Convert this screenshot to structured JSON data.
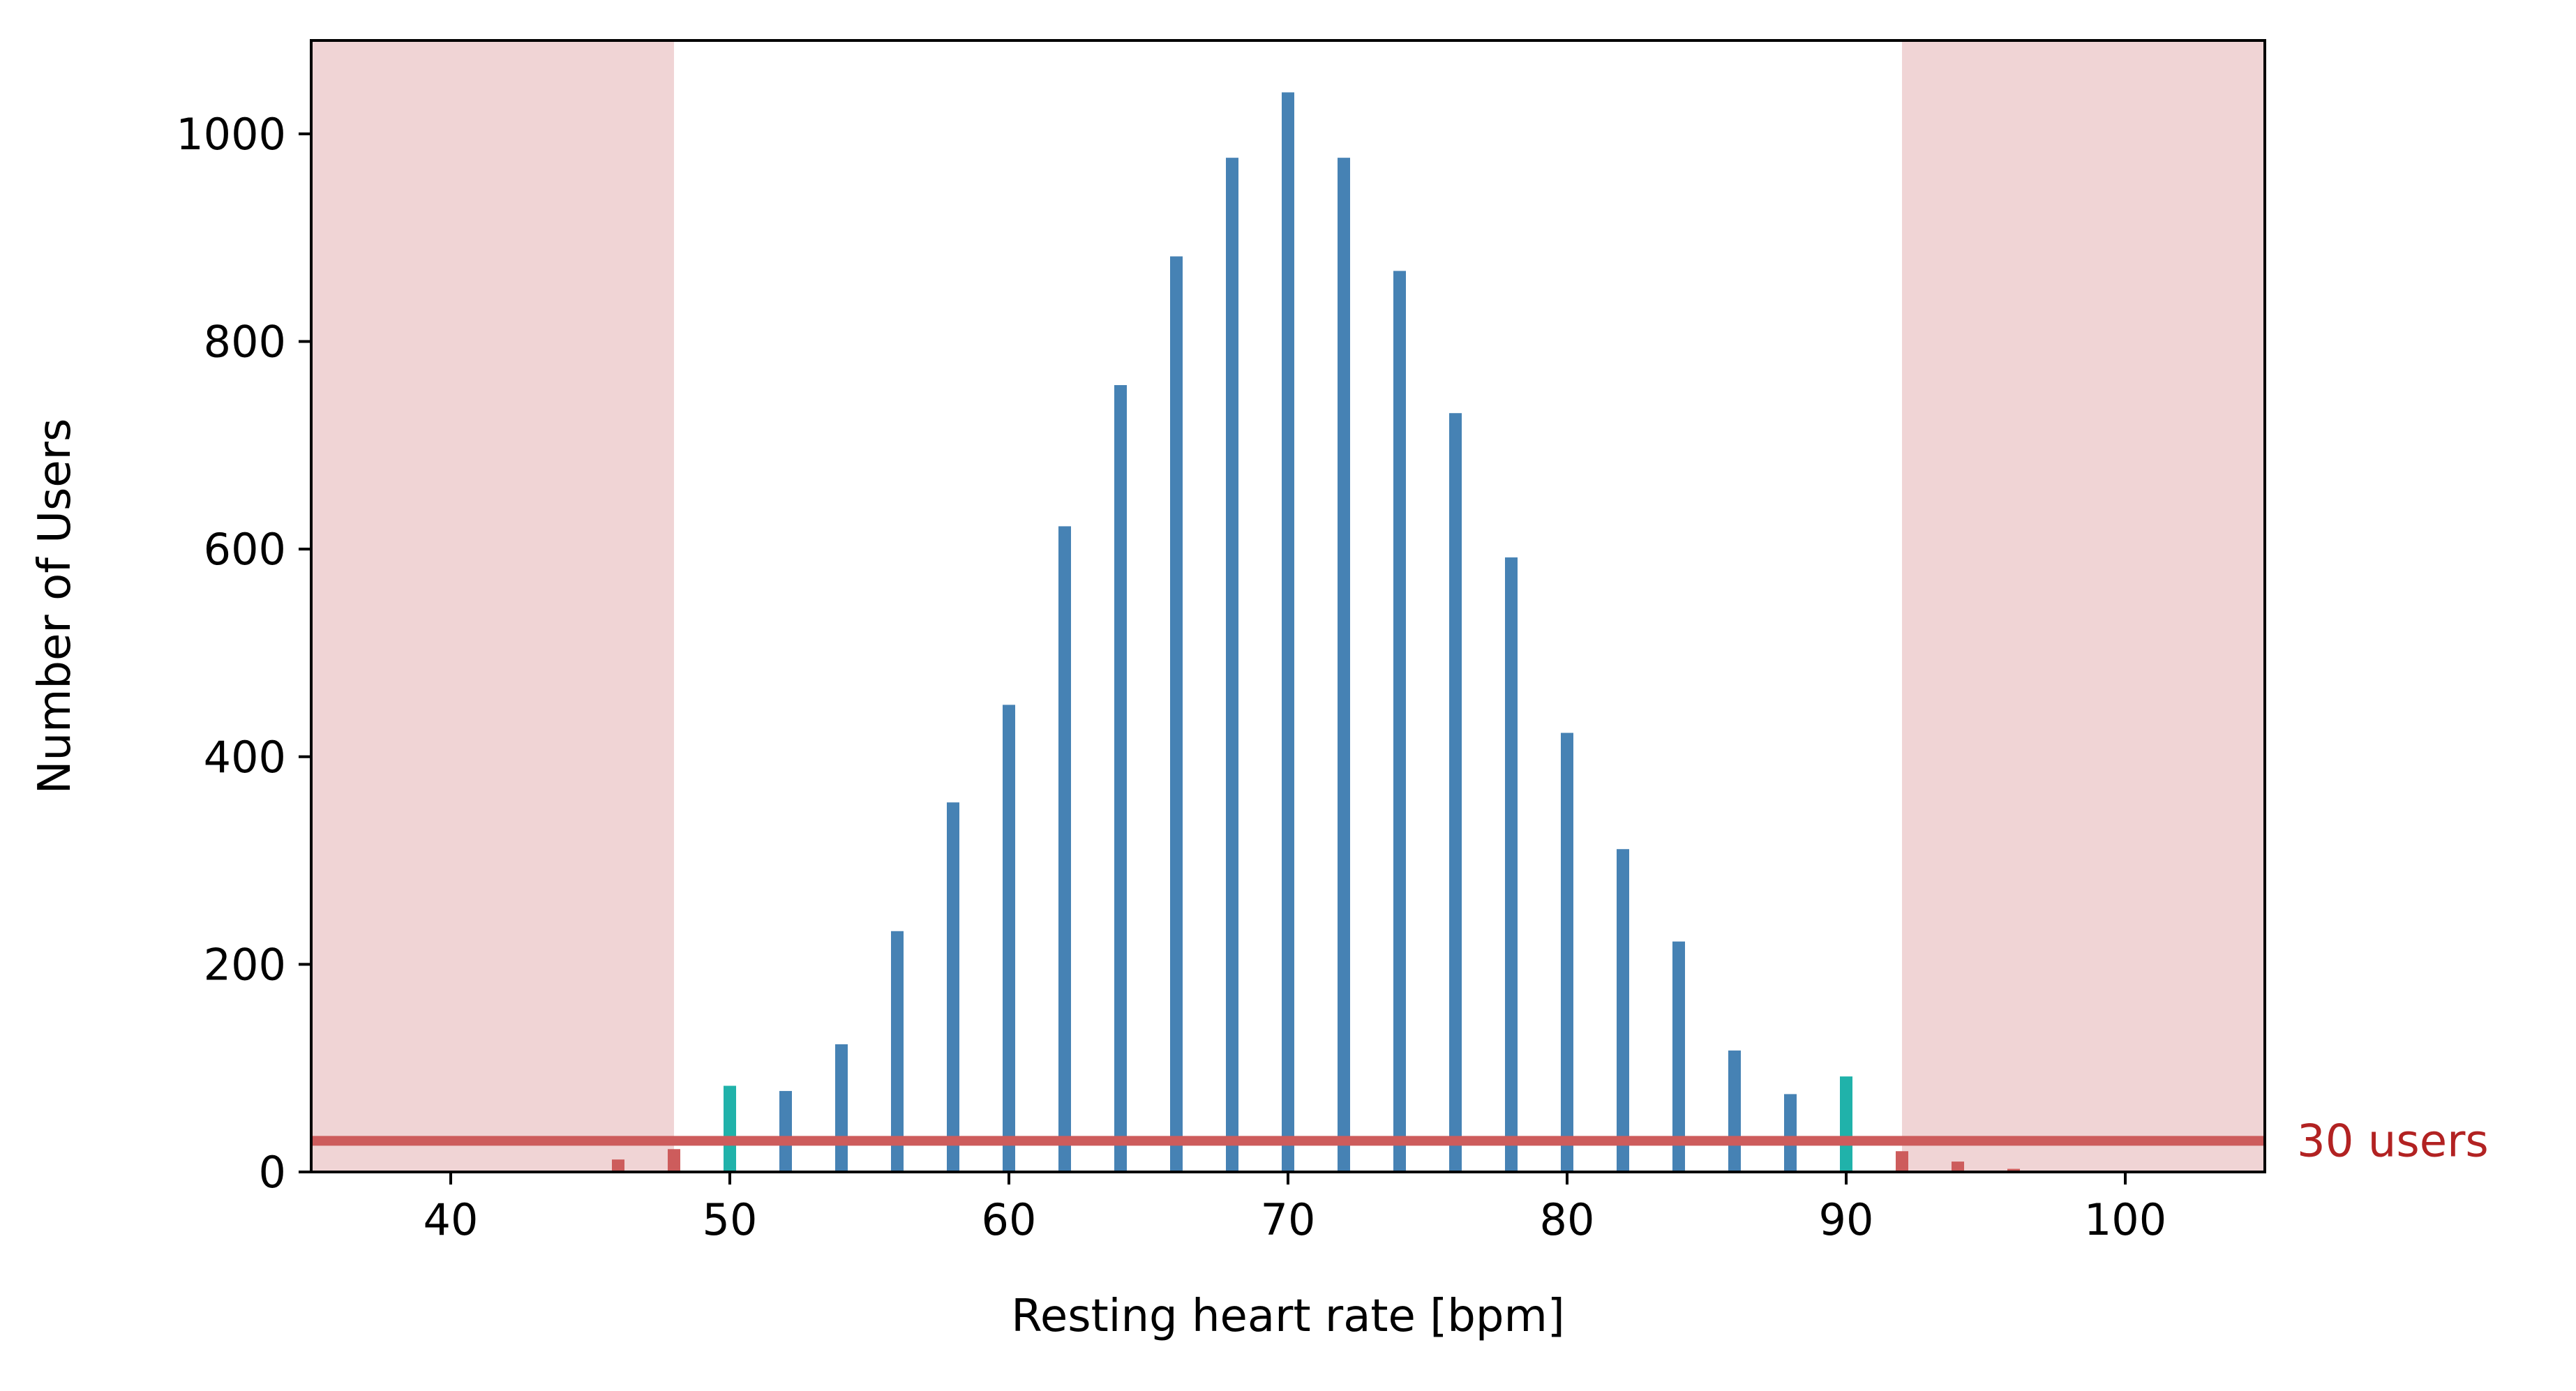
{
  "chart_data": {
    "type": "bar",
    "title": "",
    "xlabel": "Resting heart rate [bpm]",
    "ylabel": "Number of Users",
    "xlim": [
      35,
      105
    ],
    "ylim": [
      0,
      1090
    ],
    "xticks": [
      40,
      50,
      60,
      70,
      80,
      90,
      100
    ],
    "yticks": [
      0,
      200,
      400,
      600,
      800,
      1000
    ],
    "grid": false,
    "threshold": {
      "value": 30,
      "label": "30 users",
      "color": "#cd5c5c",
      "label_color": "#b22222"
    },
    "shaded_regions": [
      {
        "from": 35,
        "to": 48,
        "color": "#f0d4d5"
      },
      {
        "from": 92,
        "to": 105,
        "color": "#f0d4d5"
      }
    ],
    "colors": {
      "normal": "#4682b4",
      "flagged_low_count": "#cd5c5c",
      "borderline": "#20b2aa"
    },
    "bars": [
      {
        "x": 46,
        "value": 12,
        "status": "flagged_low_count"
      },
      {
        "x": 48,
        "value": 22,
        "status": "flagged_low_count"
      },
      {
        "x": 50,
        "value": 83,
        "status": "borderline"
      },
      {
        "x": 52,
        "value": 78,
        "status": "normal"
      },
      {
        "x": 54,
        "value": 123,
        "status": "normal"
      },
      {
        "x": 56,
        "value": 232,
        "status": "normal"
      },
      {
        "x": 58,
        "value": 356,
        "status": "normal"
      },
      {
        "x": 60,
        "value": 450,
        "status": "normal"
      },
      {
        "x": 62,
        "value": 622,
        "status": "normal"
      },
      {
        "x": 64,
        "value": 758,
        "status": "normal"
      },
      {
        "x": 66,
        "value": 882,
        "status": "normal"
      },
      {
        "x": 68,
        "value": 977,
        "status": "normal"
      },
      {
        "x": 70,
        "value": 1040,
        "status": "normal"
      },
      {
        "x": 72,
        "value": 977,
        "status": "normal"
      },
      {
        "x": 74,
        "value": 868,
        "status": "normal"
      },
      {
        "x": 76,
        "value": 731,
        "status": "normal"
      },
      {
        "x": 78,
        "value": 592,
        "status": "normal"
      },
      {
        "x": 80,
        "value": 423,
        "status": "normal"
      },
      {
        "x": 82,
        "value": 311,
        "status": "normal"
      },
      {
        "x": 84,
        "value": 222,
        "status": "normal"
      },
      {
        "x": 86,
        "value": 117,
        "status": "normal"
      },
      {
        "x": 88,
        "value": 75,
        "status": "normal"
      },
      {
        "x": 90,
        "value": 92,
        "status": "borderline"
      },
      {
        "x": 92,
        "value": 20,
        "status": "flagged_low_count"
      },
      {
        "x": 94,
        "value": 10,
        "status": "flagged_low_count"
      },
      {
        "x": 96,
        "value": 3,
        "status": "flagged_low_count"
      }
    ]
  }
}
